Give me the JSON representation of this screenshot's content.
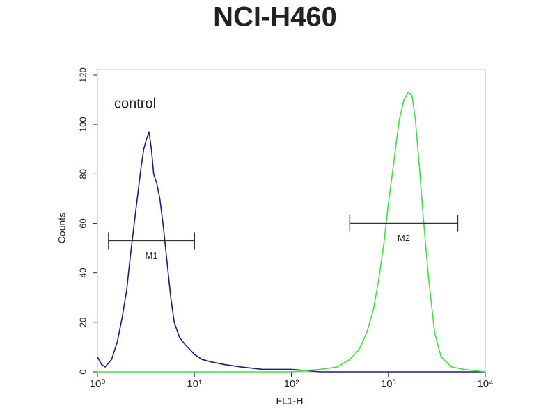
{
  "chart_data": {
    "type": "histogram-line",
    "title": "NCI-H460",
    "x_label": "FL1-H",
    "y_label": "Counts",
    "log_x": true,
    "xlim": [
      1,
      10000
    ],
    "xticks": [
      {
        "value": 1,
        "label": "10⁰"
      },
      {
        "value": 10,
        "label": "10¹"
      },
      {
        "value": 100,
        "label": "10²"
      },
      {
        "value": 1000,
        "label": "10³"
      },
      {
        "value": 10000,
        "label": "10⁴"
      }
    ],
    "ylim": [
      0,
      120
    ],
    "yticks": [
      0,
      20,
      40,
      60,
      80,
      100,
      120
    ],
    "series": [
      {
        "name": "control",
        "color": "#1c1c7a",
        "x": [
          1,
          1.1,
          1.2,
          1.4,
          1.6,
          1.8,
          2,
          2.2,
          2.5,
          2.8,
          3,
          3.2,
          3.4,
          3.6,
          3.8,
          4.1,
          4.4,
          4.8,
          5.2,
          5.7,
          6.2,
          7,
          8,
          9,
          10,
          12,
          15,
          20,
          30,
          50,
          100,
          200,
          1000,
          10000
        ],
        "values": [
          6,
          3,
          2,
          5,
          12,
          22,
          33,
          48,
          66,
          82,
          90,
          94,
          97,
          90,
          80,
          76,
          70,
          58,
          45,
          30,
          20,
          14,
          11,
          9,
          7,
          5,
          4,
          3,
          2,
          1,
          1,
          0,
          0,
          0
        ]
      },
      {
        "color": "#44dd44",
        "x": [
          1,
          100,
          200,
          300,
          400,
          500,
          600,
          700,
          800,
          900,
          1000,
          1100,
          1200,
          1300,
          1450,
          1600,
          1750,
          1900,
          2100,
          2300,
          2600,
          3000,
          3500,
          4500,
          6000,
          10000
        ],
        "values": [
          0,
          0,
          1,
          2,
          5,
          9,
          16,
          25,
          38,
          52,
          68,
          80,
          92,
          102,
          110,
          113,
          112,
          102,
          82,
          62,
          38,
          16,
          6,
          2,
          1,
          0
        ]
      }
    ],
    "markers": [
      {
        "label": "M1",
        "x": [
          1.3,
          10
        ],
        "y": 53
      },
      {
        "label": "M2",
        "x": [
          400,
          5200
        ],
        "y": 60
      }
    ]
  }
}
